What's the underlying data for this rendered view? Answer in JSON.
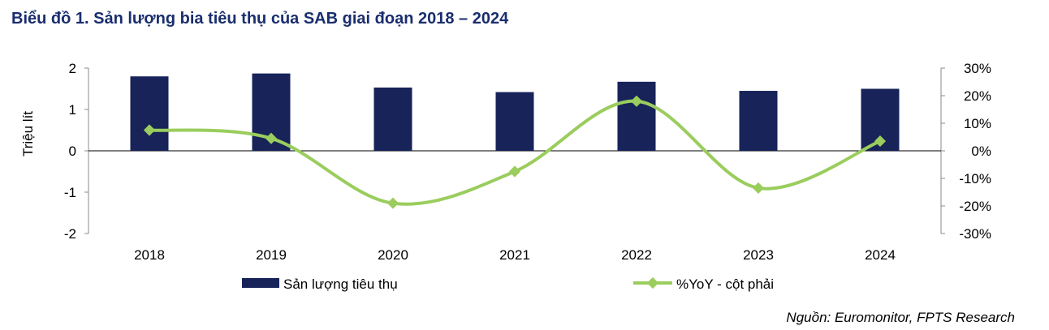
{
  "title": "Biểu đồ 1. Sản lượng bia tiêu thụ của SAB giai đoạn 2018 – 2024",
  "source": "Nguồn: Euromonitor, FPTS Research",
  "chart_data": {
    "type": "bar+line",
    "categories": [
      "2018",
      "2019",
      "2020",
      "2021",
      "2022",
      "2023",
      "2024"
    ],
    "series": [
      {
        "name": "Sản lượng tiêu thụ",
        "type": "bar",
        "axis": "left",
        "color": "#172359",
        "values": [
          1.8,
          1.87,
          1.53,
          1.42,
          1.67,
          1.45,
          1.5
        ]
      },
      {
        "name": "%YoY - cột phải",
        "type": "line",
        "axis": "right",
        "color": "#9acd5d",
        "values": [
          7.5,
          4.5,
          -19,
          -7.5,
          18,
          -13.5,
          3.5
        ]
      }
    ],
    "ylabel": "Triệu lít",
    "ylim": [
      -2,
      2
    ],
    "yticks": [
      "2",
      "1",
      "0",
      "-1",
      "-2"
    ],
    "y2lim": [
      -30,
      30
    ],
    "y2ticks": [
      "30%",
      "20%",
      "10%",
      "0%",
      "-10%",
      "-20%",
      "-30%"
    ],
    "legend_position": "bottom"
  }
}
